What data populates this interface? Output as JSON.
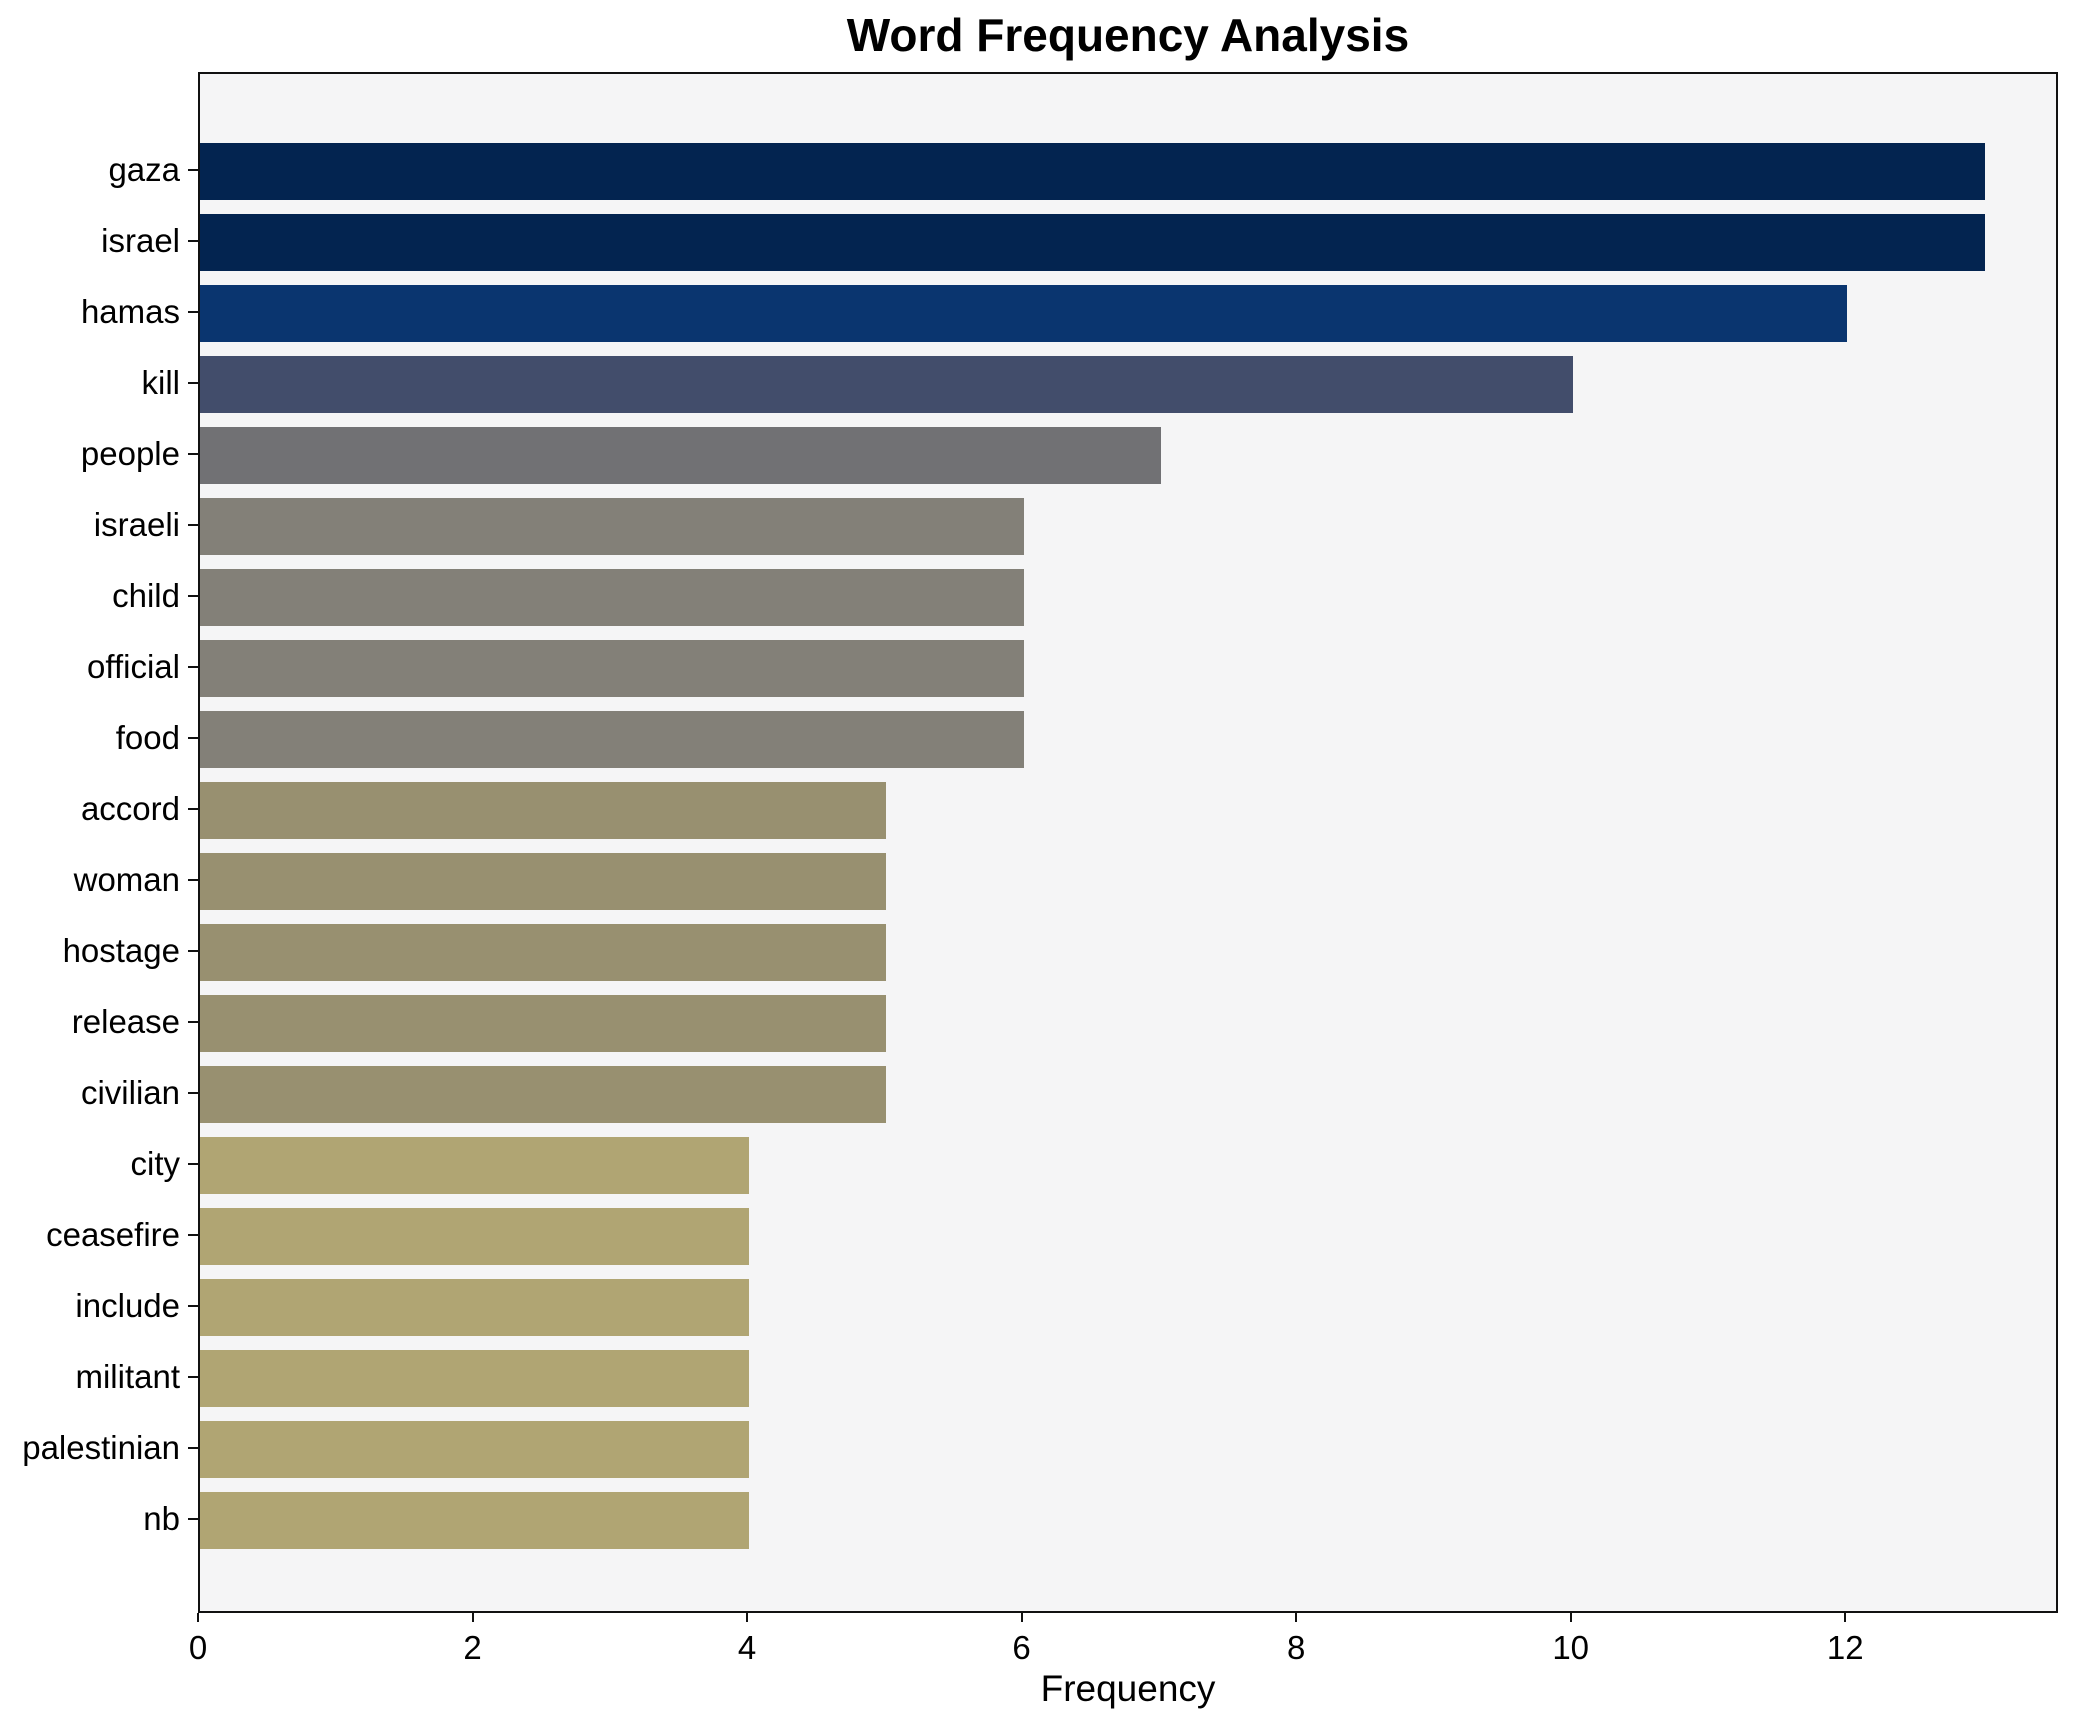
{
  "chart_data": {
    "type": "bar",
    "orientation": "horizontal",
    "title": "Word Frequency Analysis",
    "xlabel": "Frequency",
    "ylabel": "",
    "categories": [
      "gaza",
      "israel",
      "hamas",
      "kill",
      "people",
      "israeli",
      "child",
      "official",
      "food",
      "accord",
      "woman",
      "hostage",
      "release",
      "civilian",
      "city",
      "ceasefire",
      "include",
      "militant",
      "palestinian",
      "nb"
    ],
    "values": [
      13,
      13,
      12,
      10,
      7,
      6,
      6,
      6,
      6,
      5,
      5,
      5,
      5,
      5,
      4,
      4,
      4,
      4,
      4,
      4
    ],
    "bar_colors": [
      "#032450",
      "#032450",
      "#0a356f",
      "#424d6b",
      "#717174",
      "#838078",
      "#838078",
      "#838078",
      "#838078",
      "#989070",
      "#989070",
      "#989070",
      "#989070",
      "#989070",
      "#b0a573",
      "#b0a573",
      "#b0a573",
      "#b0a573",
      "#b0a573",
      "#b0a573"
    ],
    "xticks": [
      0,
      2,
      4,
      6,
      8,
      10,
      12
    ],
    "xlim": [
      0,
      13.55
    ],
    "grid": false,
    "legend": false,
    "colors": {
      "plot_bg": "#f5f5f6",
      "figure_bg": "#ffffff",
      "spine": "#111111",
      "text": "#000000"
    }
  }
}
